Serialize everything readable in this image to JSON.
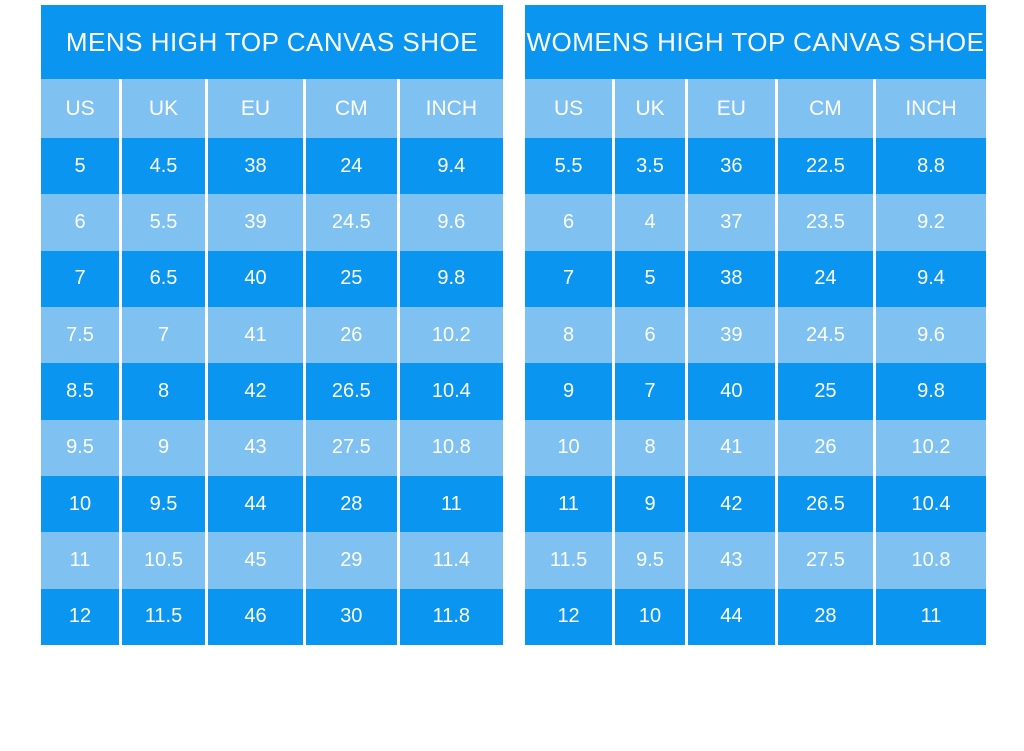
{
  "colors": {
    "dark_blue": "#0A95F0",
    "light_blue": "#7FC1F0",
    "text": "#FFFFFF",
    "background": "#FFFFFF"
  },
  "chart_data": [
    {
      "type": "table",
      "title": "MENS HIGH TOP CANVAS SHOE",
      "columns": [
        "US",
        "UK",
        "EU",
        "CM",
        "INCH"
      ],
      "rows": [
        [
          "5",
          "4.5",
          "38",
          "24",
          "9.4"
        ],
        [
          "6",
          "5.5",
          "39",
          "24.5",
          "9.6"
        ],
        [
          "7",
          "6.5",
          "40",
          "25",
          "9.8"
        ],
        [
          "7.5",
          "7",
          "41",
          "26",
          "10.2"
        ],
        [
          "8.5",
          "8",
          "42",
          "26.5",
          "10.4"
        ],
        [
          "9.5",
          "9",
          "43",
          "27.5",
          "10.8"
        ],
        [
          "10",
          "9.5",
          "44",
          "28",
          "11"
        ],
        [
          "11",
          "10.5",
          "45",
          "29",
          "11.4"
        ],
        [
          "12",
          "11.5",
          "46",
          "30",
          "11.8"
        ]
      ],
      "layout_hints": {
        "row_striping": [
          "dark-blue",
          "light-blue"
        ],
        "header_background": "light-blue",
        "title_background": "dark-blue"
      }
    },
    {
      "type": "table",
      "title": "WOMENS HIGH TOP CANVAS SHOE",
      "columns": [
        "US",
        "UK",
        "EU",
        "CM",
        "INCH"
      ],
      "rows": [
        [
          "5.5",
          "3.5",
          "36",
          "22.5",
          "8.8"
        ],
        [
          "6",
          "4",
          "37",
          "23.5",
          "9.2"
        ],
        [
          "7",
          "5",
          "38",
          "24",
          "9.4"
        ],
        [
          "8",
          "6",
          "39",
          "24.5",
          "9.6"
        ],
        [
          "9",
          "7",
          "40",
          "25",
          "9.8"
        ],
        [
          "10",
          "8",
          "41",
          "26",
          "10.2"
        ],
        [
          "11",
          "9",
          "42",
          "26.5",
          "10.4"
        ],
        [
          "11.5",
          "9.5",
          "43",
          "27.5",
          "10.8"
        ],
        [
          "12",
          "10",
          "44",
          "28",
          "11"
        ]
      ],
      "layout_hints": {
        "row_striping": [
          "dark-blue",
          "light-blue"
        ],
        "header_background": "light-blue",
        "title_background": "dark-blue"
      }
    }
  ]
}
